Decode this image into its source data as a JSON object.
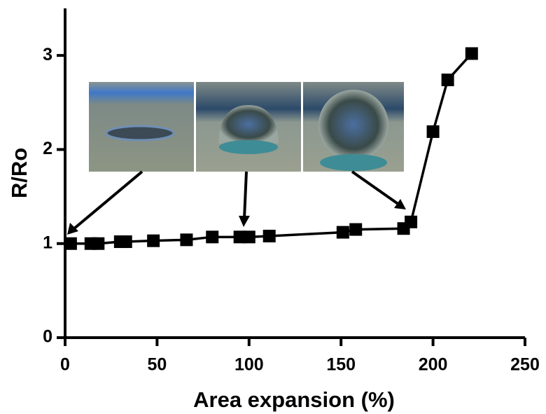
{
  "chart_data": {
    "type": "line",
    "x_label": "Area expansion (%)",
    "y_label": "R/Ro",
    "x": [
      3,
      14,
      18,
      30,
      33,
      48,
      66,
      80,
      95,
      100,
      111,
      151,
      158,
      184,
      188,
      200,
      208,
      221
    ],
    "series": [
      {
        "color": "#000000",
        "values": [
          1.0,
          1.0,
          1.0,
          1.02,
          1.02,
          1.03,
          1.04,
          1.07,
          1.07,
          1.07,
          1.08,
          1.12,
          1.15,
          1.16,
          1.23,
          2.19,
          2.74,
          3.02
        ]
      }
    ],
    "xlim": [
      0,
      250
    ],
    "ylim": [
      0,
      3.5
    ],
    "xticks": [
      0,
      50,
      100,
      150,
      200,
      250
    ],
    "yticks": [
      0,
      1,
      2,
      3
    ],
    "grid": false
  }
}
